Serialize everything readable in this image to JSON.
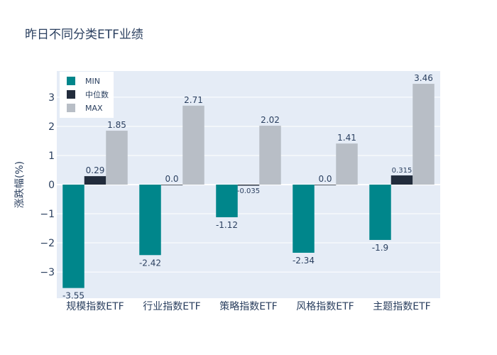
{
  "chart_data": {
    "type": "bar",
    "title": "昨日不同分类ETF业绩",
    "xlabel": "",
    "ylabel": "涨跌幅(%)",
    "ylim": [
      -3.9,
      3.9
    ],
    "yticks": [
      3,
      2,
      1,
      0,
      -1,
      -2,
      -3
    ],
    "ytick_labels": [
      "3",
      "2",
      "1",
      "0",
      "−1",
      "−2",
      "−3"
    ],
    "categories": [
      "规模指数ETF",
      "行业指数ETF",
      "策略指数ETF",
      "风格指数ETF",
      "主题指数ETF"
    ],
    "series": [
      {
        "name": "MIN",
        "color": "#00868b",
        "values": [
          -3.55,
          -2.42,
          -1.12,
          -2.34,
          -1.9
        ],
        "labels": [
          "-3.55",
          "-2.42",
          "-1.12",
          "-2.34",
          "-1.9"
        ]
      },
      {
        "name": "中位数",
        "color": "#222c3c",
        "values": [
          0.29,
          0.0,
          -0.035,
          0.0,
          0.315
        ],
        "labels": [
          "0.29",
          "0.0",
          "-0.035",
          "0.0",
          "0.315"
        ]
      },
      {
        "name": "MAX",
        "color": "#b8bec6",
        "values": [
          1.85,
          2.71,
          2.02,
          1.41,
          3.46
        ],
        "labels": [
          "1.85",
          "2.71",
          "2.02",
          "1.41",
          "3.46"
        ]
      }
    ],
    "legend": "top-left",
    "grid": true
  }
}
